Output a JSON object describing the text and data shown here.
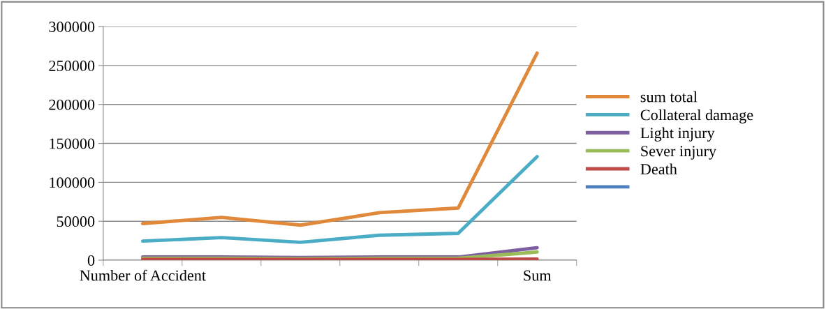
{
  "chart_data": {
    "type": "line",
    "categories": [
      "Number of Accident",
      null,
      null,
      null,
      null,
      "Sum"
    ],
    "series": [
      {
        "name": "sum total",
        "color": "#e0893a",
        "values": [
          47000,
          55000,
          45000,
          61000,
          67000,
          266000
        ]
      },
      {
        "name": "Collateral damage",
        "color": "#4aacc5",
        "values": [
          24500,
          29000,
          23000,
          32000,
          34500,
          133000
        ]
      },
      {
        "name": "Light injury",
        "color": "#7d5fa0",
        "values": [
          4000,
          4000,
          3500,
          4000,
          4000,
          16000
        ]
      },
      {
        "name": "Sever injury",
        "color": "#9bbb59",
        "values": [
          2500,
          2500,
          2000,
          2500,
          2500,
          10500
        ]
      },
      {
        "name": "Death",
        "color": "#be4b48",
        "values": [
          1000,
          1000,
          1000,
          1000,
          1000,
          1500
        ]
      },
      {
        "color": "#4f81bd",
        "values": [
          null,
          null,
          null,
          null,
          null,
          null
        ]
      }
    ],
    "ylim": [
      0,
      300000
    ],
    "yticks": [
      0,
      50000,
      100000,
      150000,
      200000,
      250000,
      300000
    ],
    "grid": "y",
    "legend": "right",
    "marker": "none",
    "line_style": "solid"
  }
}
